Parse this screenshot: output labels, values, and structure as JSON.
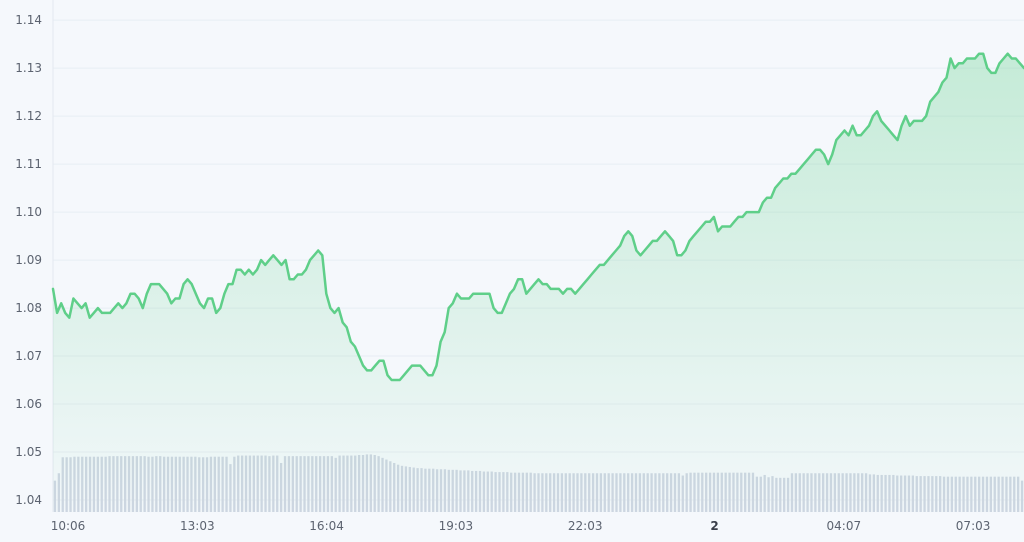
{
  "chart_data": {
    "type": "line",
    "title": "",
    "xlabel": "",
    "ylabel": "",
    "ylim": [
      1.0375,
      1.1442
    ],
    "grid": true,
    "y_ticks": [
      "1.14",
      "1.13",
      "1.12",
      "1.11",
      "1.10",
      "1.09",
      "1.08",
      "1.07",
      "1.06",
      "1.05",
      "1.04"
    ],
    "x_ticks": [
      {
        "label": "10:06",
        "bold": false
      },
      {
        "label": "13:03",
        "bold": false
      },
      {
        "label": "16:04",
        "bold": false
      },
      {
        "label": "19:03",
        "bold": false
      },
      {
        "label": "22:03",
        "bold": false
      },
      {
        "label": "2",
        "bold": true
      },
      {
        "label": "04:07",
        "bold": false
      },
      {
        "label": "07:03",
        "bold": false
      }
    ],
    "colors": {
      "line": "#5fcf89",
      "fill": "#5fcf89",
      "volume": "#cfd6e3",
      "grid": "#e8edf4",
      "background": "#f5f8fc"
    },
    "series": [
      {
        "values": [
          1.084,
          1.079,
          1.081,
          1.079,
          1.078,
          1.082,
          1.081,
          1.08,
          1.081,
          1.078,
          1.079,
          1.08,
          1.079,
          1.079,
          1.079,
          1.08,
          1.081,
          1.08,
          1.081,
          1.083,
          1.083,
          1.082,
          1.08,
          1.083,
          1.085,
          1.085,
          1.085,
          1.084,
          1.083,
          1.081,
          1.082,
          1.082,
          1.085,
          1.086,
          1.085,
          1.083,
          1.081,
          1.08,
          1.082,
          1.082,
          1.079,
          1.08,
          1.083,
          1.085,
          1.085,
          1.088,
          1.088,
          1.087,
          1.088,
          1.087,
          1.088,
          1.09,
          1.089,
          1.09,
          1.091,
          1.09,
          1.089,
          1.09,
          1.086,
          1.086,
          1.087,
          1.087,
          1.088,
          1.09,
          1.091,
          1.092,
          1.091,
          1.083,
          1.08,
          1.079,
          1.08,
          1.077,
          1.076,
          1.073,
          1.072,
          1.07,
          1.068,
          1.067,
          1.067,
          1.068,
          1.069,
          1.069,
          1.066,
          1.065,
          1.065,
          1.065,
          1.066,
          1.067,
          1.068,
          1.068,
          1.068,
          1.067,
          1.066,
          1.066,
          1.068,
          1.073,
          1.075,
          1.08,
          1.081,
          1.083,
          1.082,
          1.082,
          1.082,
          1.083,
          1.083,
          1.083,
          1.083,
          1.083,
          1.08,
          1.079,
          1.079,
          1.081,
          1.083,
          1.084,
          1.086,
          1.086,
          1.083,
          1.084,
          1.085,
          1.086,
          1.085,
          1.085,
          1.084,
          1.084,
          1.084,
          1.083,
          1.084,
          1.084,
          1.083,
          1.084,
          1.085,
          1.086,
          1.087,
          1.088,
          1.089,
          1.089,
          1.09,
          1.091,
          1.092,
          1.093,
          1.095,
          1.096,
          1.095,
          1.092,
          1.091,
          1.092,
          1.093,
          1.094,
          1.094,
          1.095,
          1.096,
          1.095,
          1.094,
          1.091,
          1.091,
          1.092,
          1.094,
          1.095,
          1.096,
          1.097,
          1.098,
          1.098,
          1.099,
          1.096,
          1.097,
          1.097,
          1.097,
          1.098,
          1.099,
          1.099,
          1.1,
          1.1,
          1.1,
          1.1,
          1.102,
          1.103,
          1.103,
          1.105,
          1.106,
          1.107,
          1.107,
          1.108,
          1.108,
          1.109,
          1.11,
          1.111,
          1.112,
          1.113,
          1.113,
          1.112,
          1.11,
          1.112,
          1.115,
          1.116,
          1.117,
          1.116,
          1.118,
          1.116,
          1.116,
          1.117,
          1.118,
          1.12,
          1.121,
          1.119,
          1.118,
          1.117,
          1.116,
          1.115,
          1.118,
          1.12,
          1.118,
          1.119,
          1.119,
          1.119,
          1.12,
          1.123,
          1.124,
          1.125,
          1.127,
          1.128,
          1.132,
          1.13,
          1.131,
          1.131,
          1.132,
          1.132,
          1.132,
          1.133,
          1.133,
          1.13,
          1.129,
          1.129,
          1.131,
          1.132,
          1.133,
          1.132,
          1.132,
          1.131,
          1.13
        ]
      }
    ],
    "volume_relative": [
      0.55,
      0.68,
      0.96,
      0.96,
      0.96,
      0.97,
      0.97,
      0.97,
      0.97,
      0.97,
      0.97,
      0.97,
      0.97,
      0.97,
      0.98,
      0.98,
      0.98,
      0.98,
      0.98,
      0.98,
      0.98,
      0.98,
      0.98,
      0.98,
      0.97,
      0.97,
      0.98,
      0.98,
      0.97,
      0.97,
      0.97,
      0.97,
      0.97,
      0.97,
      0.97,
      0.97,
      0.97,
      0.96,
      0.96,
      0.96,
      0.97,
      0.97,
      0.97,
      0.97,
      0.97,
      0.84,
      0.97,
      0.99,
      0.99,
      0.99,
      0.99,
      0.99,
      0.99,
      0.99,
      0.99,
      0.98,
      0.99,
      0.99,
      0.86,
      0.98,
      0.98,
      0.98,
      0.98,
      0.98,
      0.98,
      0.98,
      0.98,
      0.98,
      0.98,
      0.98,
      0.98,
      0.98,
      0.95,
      0.99,
      0.99,
      0.99,
      0.99,
      0.99,
      1.0,
      1.0,
      1.01,
      1.01,
      1.0,
      0.98,
      0.95,
      0.92,
      0.89,
      0.86,
      0.83,
      0.81,
      0.8,
      0.79,
      0.78,
      0.77,
      0.77,
      0.76,
      0.76,
      0.76,
      0.75,
      0.75,
      0.75,
      0.74,
      0.74,
      0.74,
      0.73,
      0.73,
      0.73,
      0.72,
      0.72,
      0.72,
      0.71,
      0.71,
      0.71,
      0.7,
      0.7,
      0.7,
      0.7,
      0.69,
      0.69,
      0.69,
      0.69,
      0.69,
      0.69,
      0.68,
      0.68,
      0.68,
      0.68,
      0.68,
      0.68,
      0.68,
      0.68,
      0.68,
      0.68,
      0.68,
      0.68,
      0.68,
      0.68,
      0.68,
      0.68,
      0.68,
      0.68,
      0.68,
      0.68,
      0.68,
      0.68,
      0.68,
      0.68,
      0.68,
      0.68,
      0.68,
      0.68,
      0.68,
      0.68,
      0.68,
      0.68,
      0.68,
      0.68,
      0.68,
      0.68,
      0.68,
      0.68,
      0.64,
      0.68,
      0.69,
      0.69,
      0.69,
      0.69,
      0.69,
      0.69,
      0.69,
      0.69,
      0.69,
      0.69,
      0.69,
      0.69,
      0.69,
      0.69,
      0.69,
      0.69,
      0.69,
      0.62,
      0.62,
      0.65,
      0.61,
      0.63,
      0.6,
      0.6,
      0.6,
      0.6,
      0.68,
      0.68,
      0.68,
      0.68,
      0.68,
      0.68,
      0.68,
      0.68,
      0.68,
      0.68,
      0.68,
      0.68,
      0.68,
      0.68,
      0.68,
      0.68,
      0.68,
      0.68,
      0.68,
      0.68,
      0.66,
      0.66,
      0.65,
      0.65,
      0.65,
      0.65,
      0.65,
      0.64,
      0.64,
      0.64,
      0.64,
      0.64,
      0.63,
      0.63,
      0.63,
      0.63,
      0.63,
      0.63,
      0.63,
      0.62,
      0.62,
      0.62,
      0.62,
      0.62,
      0.62,
      0.62,
      0.62,
      0.62,
      0.62,
      0.62,
      0.62,
      0.62,
      0.62,
      0.62,
      0.62,
      0.62,
      0.62,
      0.62,
      0.62,
      0.55
    ]
  }
}
